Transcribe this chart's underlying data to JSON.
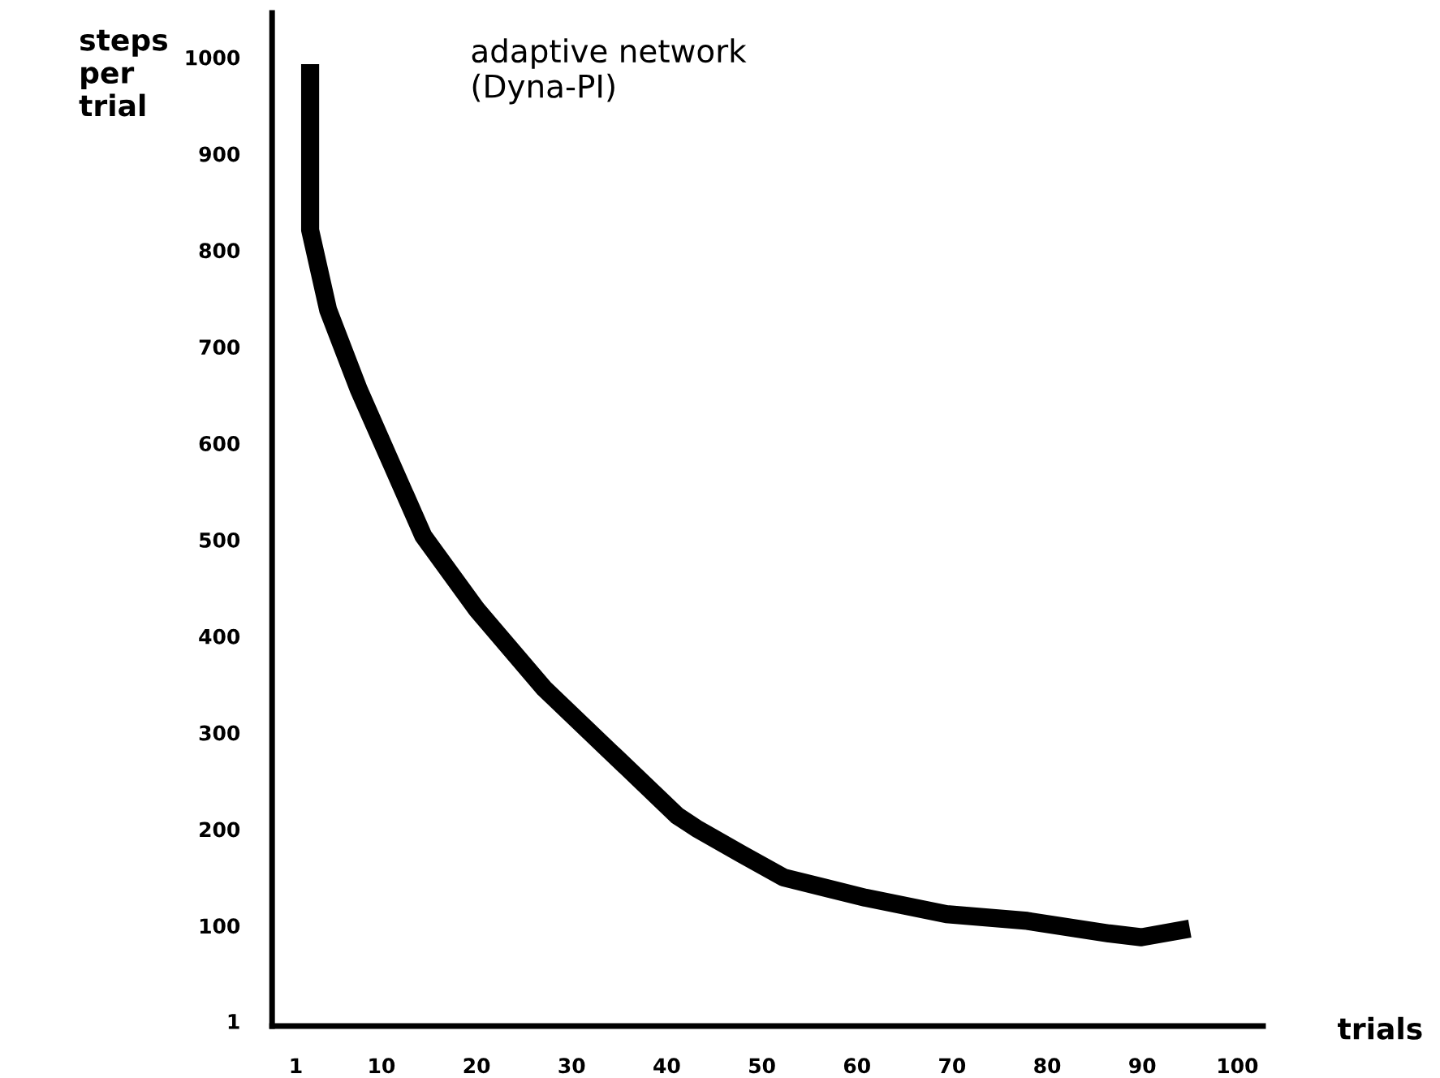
{
  "chart_data": {
    "type": "line",
    "title": "adaptive network\n(Dyna-PI)",
    "xlabel": "trials",
    "ylabel": "steps\nper\ntrial",
    "xlim": [
      -1.5,
      102.7
    ],
    "xticks": [
      1,
      10,
      20,
      30,
      40,
      50,
      60,
      70,
      80,
      90,
      100
    ],
    "ylim": [
      -4,
      1046
    ],
    "yticks": [
      1,
      100,
      200,
      300,
      400,
      500,
      600,
      700,
      800,
      900,
      1000
    ],
    "series": [
      {
        "color": "#000000",
        "x": [
          2.5,
          2.5,
          4.4,
          7.6,
          11,
          14.4,
          20,
          27.1,
          34.1,
          41.1,
          43.1,
          47.9,
          52.3,
          60.9,
          69.4,
          77.9,
          86.5,
          89.9,
          95
        ],
        "values": [
          993,
          821,
          738,
          656,
          580,
          504,
          428,
          346,
          280,
          214,
          201,
          174,
          150,
          129,
          112,
          105,
          92,
          88,
          97
        ]
      }
    ],
    "grid": false,
    "marker": "none",
    "line_style": "solid"
  }
}
